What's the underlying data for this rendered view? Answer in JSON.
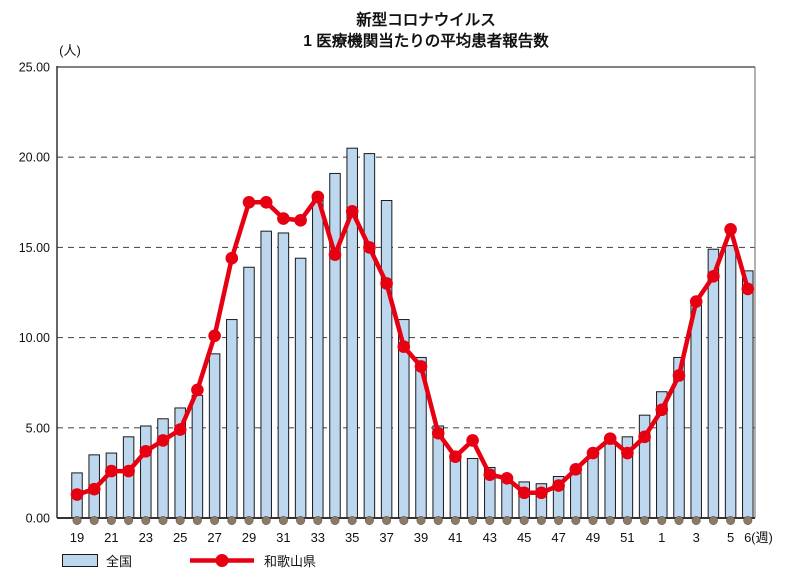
{
  "title": {
    "line1": "新型コロナウイルス",
    "line2": "1 医療機関当たりの平均患者報告数"
  },
  "y_axis": {
    "unit": "(人)",
    "ticks": [
      {
        "label": "0.00",
        "value": 0
      },
      {
        "label": "5.00",
        "value": 5
      },
      {
        "label": "10.00",
        "value": 10
      },
      {
        "label": "15.00",
        "value": 15
      },
      {
        "label": "20.00",
        "value": 20
      },
      {
        "label": "25.00",
        "value": 25
      }
    ]
  },
  "x_axis": {
    "unit": "(週)",
    "labeled_ticks": [
      "19",
      "21",
      "23",
      "25",
      "27",
      "29",
      "31",
      "33",
      "35",
      "37",
      "39",
      "41",
      "43",
      "45",
      "47",
      "49",
      "51",
      "1",
      "3",
      "5",
      "6"
    ]
  },
  "legend": {
    "items": [
      {
        "label": "全国",
        "type": "bar",
        "color": "#BDD7EE"
      },
      {
        "label": "和歌山県",
        "type": "line",
        "color": "#E60012"
      }
    ]
  },
  "baseline_markers": {
    "color": "#8A7A68"
  },
  "chart_data": {
    "type": "bar",
    "title": "新型コロナウイルス 1医療機関当たりの平均患者報告数",
    "xlabel": "(週)",
    "ylabel": "(人)",
    "ylim": [
      0,
      25
    ],
    "grid": "horizontal dashed lines every 5",
    "legend_position": "bottom-left",
    "categories": [
      "19",
      "20",
      "21",
      "22",
      "23",
      "24",
      "25",
      "26",
      "27",
      "28",
      "29",
      "30",
      "31",
      "32",
      "33",
      "34",
      "35",
      "36",
      "37",
      "38",
      "39",
      "40",
      "41",
      "42",
      "43",
      "44",
      "45",
      "46",
      "47",
      "48",
      "49",
      "50",
      "51",
      "52",
      "1",
      "2",
      "3",
      "4",
      "5",
      "6"
    ],
    "series": [
      {
        "name": "全国",
        "type": "bar",
        "color": "#BDD7EE",
        "values": [
          2.5,
          3.5,
          3.6,
          4.5,
          5.1,
          5.5,
          6.1,
          6.8,
          9.1,
          11.0,
          13.9,
          15.9,
          15.8,
          14.4,
          17.9,
          19.1,
          20.5,
          20.2,
          17.6,
          11.0,
          8.9,
          5.1,
          3.4,
          3.3,
          2.8,
          2.2,
          2.0,
          1.9,
          2.3,
          2.5,
          3.5,
          4.3,
          4.5,
          5.7,
          7.0,
          8.9,
          11.8,
          14.9,
          15.1,
          13.7
        ]
      },
      {
        "name": "和歌山県",
        "type": "line",
        "color": "#E60012",
        "values": [
          1.3,
          1.6,
          2.6,
          2.6,
          3.7,
          4.3,
          4.9,
          7.1,
          10.1,
          14.4,
          17.5,
          17.5,
          16.6,
          16.5,
          17.8,
          14.6,
          17.0,
          15.0,
          13.0,
          9.5,
          8.4,
          4.7,
          3.4,
          4.3,
          2.4,
          2.2,
          1.4,
          1.4,
          1.8,
          2.7,
          3.6,
          4.4,
          3.6,
          4.5,
          6.0,
          7.9,
          12.0,
          13.4,
          16.0,
          12.7
        ]
      }
    ]
  }
}
